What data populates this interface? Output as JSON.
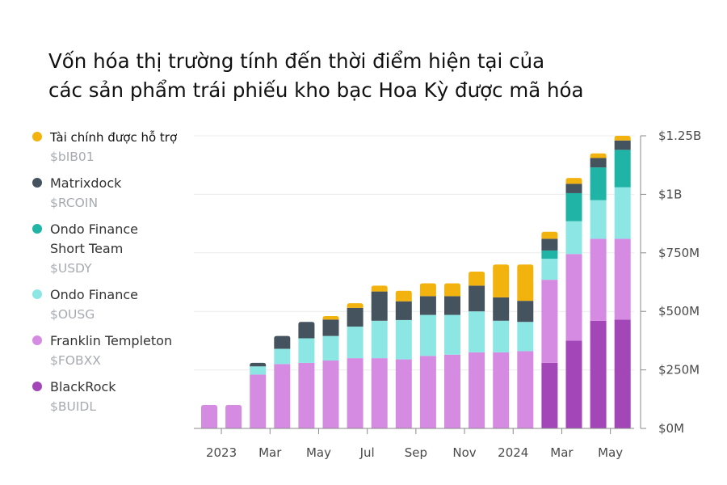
{
  "title_lines": [
    "Vốn hóa thị trường tính đến thời điểm hiện tại của",
    "các sản phẩm trái phiếu kho bạc Hoa Kỳ được mã hóa"
  ],
  "chart_data": {
    "type": "bar",
    "stacked": true,
    "title": "Vốn hóa thị trường tính đến thời điểm hiện tại của các sản phẩm trái phiếu kho bạc Hoa Kỳ được mã hóa",
    "x_tick_labels": [
      "2023",
      "Mar",
      "May",
      "Jul",
      "Sep",
      "Nov",
      "2024",
      "Mar",
      "May"
    ],
    "x_tick_indices": [
      0.5,
      2.5,
      4.5,
      6.5,
      8.5,
      10.5,
      12.5,
      14.5,
      16.5
    ],
    "y_tick_labels": [
      "$0M",
      "$250M",
      "$500M",
      "$750M",
      "$1B",
      "$1.25B"
    ],
    "y_tick_values": [
      0,
      250,
      500,
      750,
      1000,
      1250
    ],
    "ylim": [
      0,
      1250
    ],
    "y_unit": "$M",
    "grid": true,
    "legend_position": "left",
    "series": [
      {
        "name": "BlackRock",
        "ticker": "$BUIDL",
        "color": "#a346b8",
        "values": [
          0,
          0,
          0,
          0,
          0,
          0,
          0,
          0,
          0,
          0,
          0,
          0,
          0,
          0,
          280,
          375,
          460,
          465
        ]
      },
      {
        "name": "Franklin Templeton",
        "ticker": "$FOBXX",
        "color": "#d68be3",
        "values": [
          100,
          100,
          230,
          275,
          280,
          290,
          300,
          300,
          295,
          310,
          315,
          325,
          325,
          330,
          355,
          370,
          350,
          345
        ]
      },
      {
        "name": "Ondo Finance",
        "ticker": "$OUSG",
        "color": "#8ce6e3",
        "values": [
          0,
          0,
          35,
          65,
          105,
          105,
          135,
          160,
          168,
          175,
          170,
          175,
          135,
          125,
          90,
          140,
          165,
          220
        ]
      },
      {
        "name": "Ondo Finance Short Team",
        "ticker": "$USDY",
        "color": "#20b4a6",
        "values": [
          0,
          0,
          0,
          0,
          0,
          0,
          0,
          0,
          0,
          0,
          0,
          0,
          0,
          0,
          35,
          120,
          140,
          160
        ]
      },
      {
        "name": "Matrixdock",
        "ticker": "$RCOIN",
        "color": "#45535f",
        "values": [
          0,
          0,
          15,
          55,
          70,
          70,
          80,
          125,
          80,
          80,
          80,
          110,
          100,
          90,
          50,
          40,
          40,
          40
        ]
      },
      {
        "name": "Tài chính được hỗ trợ",
        "ticker": "$bIB01",
        "color": "#f2b30f",
        "values": [
          0,
          0,
          0,
          0,
          0,
          15,
          20,
          25,
          45,
          55,
          55,
          60,
          140,
          155,
          30,
          25,
          20,
          20
        ]
      }
    ]
  },
  "legend": [
    {
      "name": "Tài chính được hỗ trợ",
      "ticker": "$bIB01",
      "color": "#f2b30f",
      "bold": true
    },
    {
      "name": "Matrixdock",
      "ticker": "$RCOIN",
      "color": "#45535f"
    },
    {
      "name": "Ondo Finance\nShort Team",
      "ticker": "$USDY",
      "color": "#20b4a6"
    },
    {
      "name": "Ondo Finance",
      "ticker": "$OUSG",
      "color": "#8ce6e3"
    },
    {
      "name": "Franklin Templeton",
      "ticker": "$FOBXX",
      "color": "#d68be3"
    },
    {
      "name": "BlackRock",
      "ticker": "$BUIDL",
      "color": "#a346b8"
    }
  ]
}
